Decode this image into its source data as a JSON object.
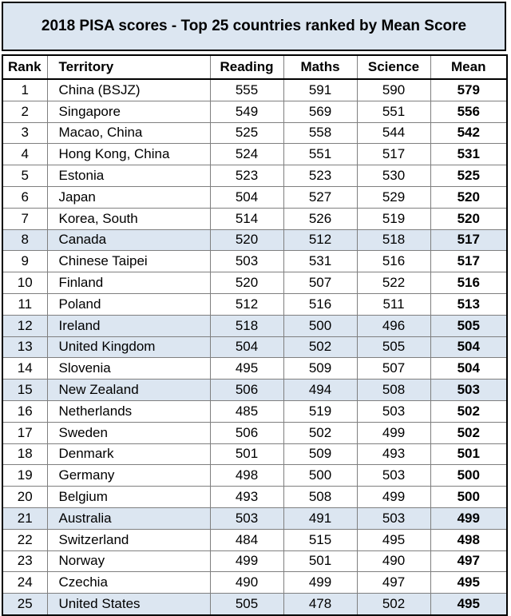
{
  "chart_data": {
    "type": "table",
    "title": "2018 PISA scores - Top 25 countries ranked by Mean Score",
    "columns": [
      "Rank",
      "Territory",
      "Reading",
      "Maths",
      "Science",
      "Mean"
    ],
    "highlight_color": "#dce6f1",
    "rows": [
      {
        "rank": "1",
        "territory": "China (BSJZ)",
        "reading": 555,
        "maths": 591,
        "science": 590,
        "mean": 579,
        "highlight": false
      },
      {
        "rank": "2",
        "territory": "Singapore",
        "reading": 549,
        "maths": 569,
        "science": 551,
        "mean": 556,
        "highlight": false
      },
      {
        "rank": "3",
        "territory": "Macao, China",
        "reading": 525,
        "maths": 558,
        "science": 544,
        "mean": 542,
        "highlight": false
      },
      {
        "rank": "4",
        "territory": "Hong Kong, China",
        "reading": 524,
        "maths": 551,
        "science": 517,
        "mean": 531,
        "highlight": false
      },
      {
        "rank": "5",
        "territory": "Estonia",
        "reading": 523,
        "maths": 523,
        "science": 530,
        "mean": 525,
        "highlight": false
      },
      {
        "rank": "6",
        "territory": "Japan",
        "reading": 504,
        "maths": 527,
        "science": 529,
        "mean": 520,
        "highlight": false
      },
      {
        "rank": "7",
        "territory": "Korea, South",
        "reading": 514,
        "maths": 526,
        "science": 519,
        "mean": 520,
        "highlight": false
      },
      {
        "rank": "8",
        "territory": "Canada",
        "reading": 520,
        "maths": 512,
        "science": 518,
        "mean": 517,
        "highlight": true
      },
      {
        "rank": "9",
        "territory": "Chinese Taipei",
        "reading": 503,
        "maths": 531,
        "science": 516,
        "mean": 517,
        "highlight": false
      },
      {
        "rank": "10",
        "territory": "Finland",
        "reading": 520,
        "maths": 507,
        "science": 522,
        "mean": 516,
        "highlight": false
      },
      {
        "rank": "11",
        "territory": "Poland",
        "reading": 512,
        "maths": 516,
        "science": 511,
        "mean": 513,
        "highlight": false
      },
      {
        "rank": "12",
        "territory": "Ireland",
        "reading": 518,
        "maths": 500,
        "science": 496,
        "mean": 505,
        "highlight": true
      },
      {
        "rank": "13",
        "territory": "United Kingdom",
        "reading": 504,
        "maths": 502,
        "science": 505,
        "mean": 504,
        "highlight": true
      },
      {
        "rank": "14",
        "territory": "Slovenia",
        "reading": 495,
        "maths": 509,
        "science": 507,
        "mean": 504,
        "highlight": false
      },
      {
        "rank": "15",
        "territory": "New Zealand",
        "reading": 506,
        "maths": 494,
        "science": 508,
        "mean": 503,
        "highlight": true
      },
      {
        "rank": "16",
        "territory": "Netherlands",
        "reading": 485,
        "maths": 519,
        "science": 503,
        "mean": 502,
        "highlight": false
      },
      {
        "rank": "17",
        "territory": "Sweden",
        "reading": 506,
        "maths": 502,
        "science": 499,
        "mean": 502,
        "highlight": false
      },
      {
        "rank": "18",
        "territory": "Denmark",
        "reading": 501,
        "maths": 509,
        "science": 493,
        "mean": 501,
        "highlight": false
      },
      {
        "rank": "19",
        "territory": "Germany",
        "reading": 498,
        "maths": 500,
        "science": 503,
        "mean": 500,
        "highlight": false
      },
      {
        "rank": "20",
        "territory": "Belgium",
        "reading": 493,
        "maths": 508,
        "science": 499,
        "mean": 500,
        "highlight": false
      },
      {
        "rank": "21",
        "territory": "Australia",
        "reading": 503,
        "maths": 491,
        "science": 503,
        "mean": 499,
        "highlight": true
      },
      {
        "rank": "22",
        "territory": "Switzerland",
        "reading": 484,
        "maths": 515,
        "science": 495,
        "mean": 498,
        "highlight": false
      },
      {
        "rank": "23",
        "territory": "Norway",
        "reading": 499,
        "maths": 501,
        "science": 490,
        "mean": 497,
        "highlight": false
      },
      {
        "rank": "24",
        "territory": "Czechia",
        "reading": 490,
        "maths": 499,
        "science": 497,
        "mean": 495,
        "highlight": false
      },
      {
        "rank": "25",
        "territory": "United States",
        "reading": 505,
        "maths": 478,
        "science": 502,
        "mean": 495,
        "highlight": true
      }
    ]
  }
}
